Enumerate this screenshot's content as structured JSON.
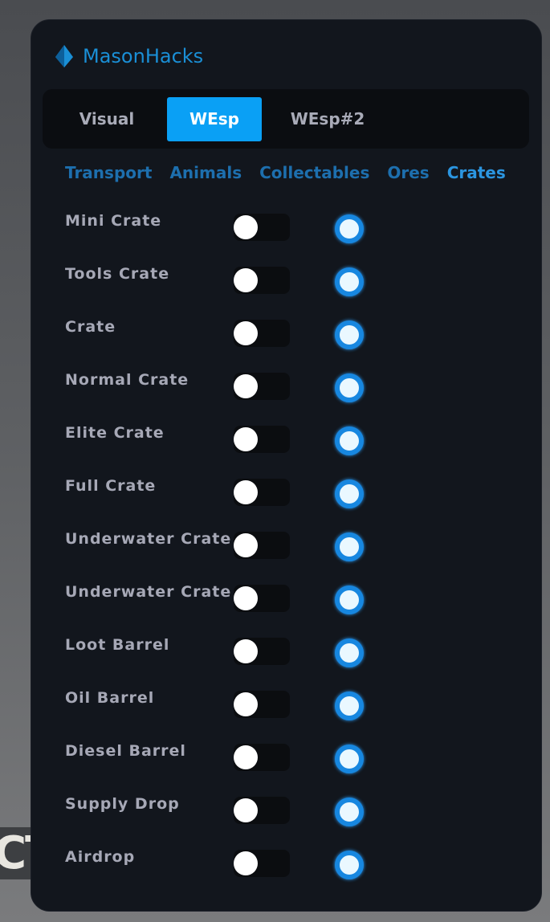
{
  "background_text": "CT",
  "app": {
    "title": "MasonHacks",
    "logo_icon": "diamond-logo-icon",
    "accent": "#0aa0f5"
  },
  "tabs": [
    {
      "label": "Visual",
      "active": false
    },
    {
      "label": "WEsp",
      "active": true
    },
    {
      "label": "WEsp#2",
      "active": false
    }
  ],
  "subtabs": [
    {
      "label": "Transport",
      "active": false
    },
    {
      "label": "Animals",
      "active": false
    },
    {
      "label": "Collectables",
      "active": false
    },
    {
      "label": "Ores",
      "active": false
    },
    {
      "label": "Crates",
      "active": true
    }
  ],
  "items": [
    {
      "label": "Mini Crate",
      "toggle": false,
      "radio": true
    },
    {
      "label": "Tools Crate",
      "toggle": false,
      "radio": true
    },
    {
      "label": "Crate",
      "toggle": false,
      "radio": true
    },
    {
      "label": "Normal Crate",
      "toggle": false,
      "radio": true
    },
    {
      "label": "Elite Crate",
      "toggle": false,
      "radio": true
    },
    {
      "label": "Full Crate",
      "toggle": false,
      "radio": true
    },
    {
      "label": "Underwater Crate",
      "toggle": false,
      "radio": true
    },
    {
      "label": "Underwater Crate",
      "toggle": false,
      "radio": true
    },
    {
      "label": "Loot Barrel",
      "toggle": false,
      "radio": true
    },
    {
      "label": "Oil Barrel",
      "toggle": false,
      "radio": true
    },
    {
      "label": "Diesel Barrel",
      "toggle": false,
      "radio": true
    },
    {
      "label": "Supply Drop",
      "toggle": false,
      "radio": true
    },
    {
      "label": "Airdrop",
      "toggle": false,
      "radio": true
    }
  ]
}
